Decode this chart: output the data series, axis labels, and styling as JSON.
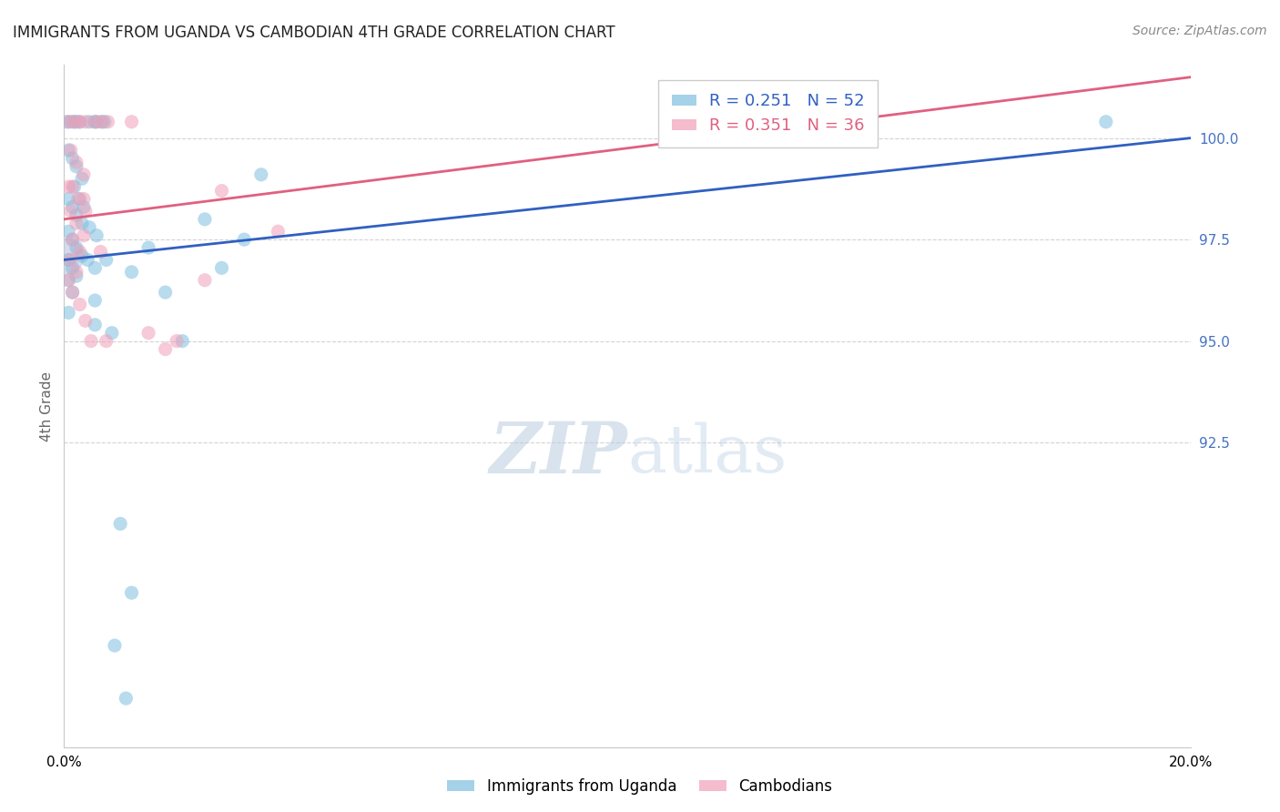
{
  "title": "IMMIGRANTS FROM UGANDA VS CAMBODIAN 4TH GRADE CORRELATION CHART",
  "source": "Source: ZipAtlas.com",
  "ylabel_ticks": [
    "92.5%",
    "95.0%",
    "97.5%",
    "100.0%"
  ],
  "xlim": [
    0.0,
    20.0
  ],
  "ylim": [
    85.0,
    101.8
  ],
  "ytick_positions": [
    92.5,
    95.0,
    97.5,
    100.0
  ],
  "xtick_positions": [
    0.0,
    4.0,
    8.0,
    12.0,
    16.0,
    20.0
  ],
  "xtick_labels_show": [
    "0.0%",
    "",
    "",
    "",
    "",
    "20.0%"
  ],
  "ylabel": "4th Grade",
  "uganda_R": 0.251,
  "uganda_N": 52,
  "cambodian_R": 0.351,
  "cambodian_N": 36,
  "blue_color": "#7fbfdf",
  "pink_color": "#f0a0b8",
  "blue_line_color": "#3060c0",
  "pink_line_color": "#e06080",
  "watermark_zip": "ZIP",
  "watermark_atlas": "atlas",
  "blue_scatter": [
    [
      0.05,
      100.4
    ],
    [
      0.12,
      100.4
    ],
    [
      0.18,
      100.4
    ],
    [
      0.22,
      100.4
    ],
    [
      0.28,
      100.4
    ],
    [
      0.45,
      100.4
    ],
    [
      0.58,
      100.4
    ],
    [
      0.68,
      100.4
    ],
    [
      0.55,
      100.4
    ],
    [
      0.72,
      100.4
    ],
    [
      0.08,
      99.7
    ],
    [
      0.15,
      99.5
    ],
    [
      0.22,
      99.3
    ],
    [
      0.32,
      99.0
    ],
    [
      0.18,
      98.8
    ],
    [
      0.28,
      98.5
    ],
    [
      0.35,
      98.3
    ],
    [
      0.08,
      98.5
    ],
    [
      0.15,
      98.3
    ],
    [
      0.22,
      98.1
    ],
    [
      0.32,
      97.9
    ],
    [
      0.45,
      97.8
    ],
    [
      0.58,
      97.6
    ],
    [
      0.08,
      97.7
    ],
    [
      0.15,
      97.5
    ],
    [
      0.22,
      97.3
    ],
    [
      0.32,
      97.1
    ],
    [
      0.42,
      97.0
    ],
    [
      0.55,
      96.8
    ],
    [
      0.08,
      97.0
    ],
    [
      0.15,
      96.8
    ],
    [
      0.22,
      96.6
    ],
    [
      0.08,
      96.5
    ],
    [
      0.15,
      96.2
    ],
    [
      0.55,
      96.0
    ],
    [
      0.08,
      95.7
    ],
    [
      0.55,
      95.4
    ],
    [
      0.85,
      95.2
    ],
    [
      1.2,
      96.7
    ],
    [
      1.8,
      96.2
    ],
    [
      2.1,
      95.0
    ],
    [
      2.8,
      96.8
    ],
    [
      3.2,
      97.5
    ],
    [
      0.75,
      97.0
    ],
    [
      1.5,
      97.3
    ],
    [
      2.5,
      98.0
    ],
    [
      3.5,
      99.1
    ],
    [
      1.0,
      90.5
    ],
    [
      1.2,
      88.8
    ],
    [
      0.9,
      87.5
    ],
    [
      1.1,
      86.2
    ],
    [
      18.5,
      100.4
    ]
  ],
  "pink_scatter": [
    [
      0.08,
      100.4
    ],
    [
      0.18,
      100.4
    ],
    [
      0.28,
      100.4
    ],
    [
      0.38,
      100.4
    ],
    [
      0.55,
      100.4
    ],
    [
      0.65,
      100.4
    ],
    [
      0.78,
      100.4
    ],
    [
      0.12,
      99.7
    ],
    [
      0.22,
      99.4
    ],
    [
      0.35,
      99.1
    ],
    [
      0.15,
      98.8
    ],
    [
      0.25,
      98.5
    ],
    [
      0.38,
      98.2
    ],
    [
      0.12,
      98.2
    ],
    [
      0.22,
      97.9
    ],
    [
      0.35,
      97.6
    ],
    [
      0.15,
      97.5
    ],
    [
      0.28,
      97.2
    ],
    [
      0.12,
      97.0
    ],
    [
      0.22,
      96.7
    ],
    [
      0.08,
      96.5
    ],
    [
      0.15,
      96.2
    ],
    [
      0.28,
      95.9
    ],
    [
      0.38,
      95.5
    ],
    [
      0.48,
      95.0
    ],
    [
      0.75,
      95.0
    ],
    [
      2.0,
      95.0
    ],
    [
      2.8,
      98.7
    ],
    [
      3.8,
      97.7
    ],
    [
      1.2,
      100.4
    ],
    [
      0.65,
      97.2
    ],
    [
      0.08,
      98.8
    ],
    [
      1.5,
      95.2
    ],
    [
      1.8,
      94.8
    ],
    [
      2.5,
      96.5
    ],
    [
      0.35,
      98.5
    ]
  ],
  "uganda_line": [
    0.0,
    97.0,
    20.0,
    100.0
  ],
  "cambodian_line": [
    0.0,
    98.0,
    20.0,
    101.5
  ],
  "large_purple_x": 0.05,
  "large_purple_y": 97.1
}
